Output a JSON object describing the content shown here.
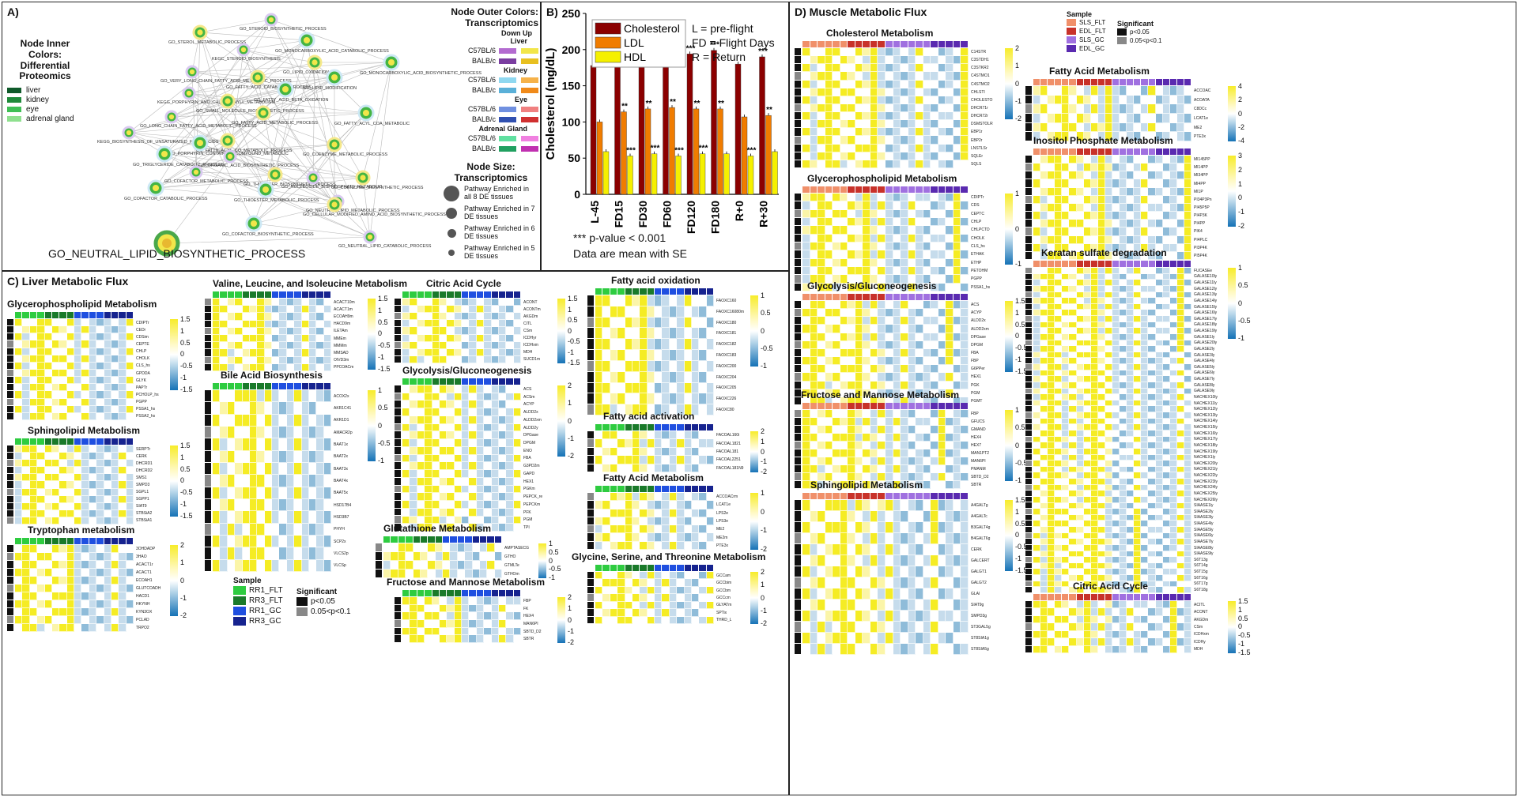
{
  "panelA": {
    "label": "A)",
    "inner_title": "Node Inner Colors: Differential Proteomics",
    "inner_items": [
      {
        "name": "liver",
        "color": "#0f5a2a"
      },
      {
        "name": "kidney",
        "color": "#1f8a3a"
      },
      {
        "name": "eye",
        "color": "#3fbf55"
      },
      {
        "name": "adrenal gland",
        "color": "#8fe08f"
      }
    ],
    "outer_title": "Node Outer Colors: Transcriptomics",
    "down_up": "Down Up",
    "tissues": [
      {
        "name": "Liver",
        "rows": [
          {
            "strain": "C57BL/6",
            "down": "#b36bd0",
            "up": "#f2e64a"
          },
          {
            "strain": "BALB/c",
            "down": "#7a3da0",
            "up": "#e8c020"
          }
        ]
      },
      {
        "name": "Kidney",
        "rows": [
          {
            "strain": "C57BL/6",
            "down": "#8fd8f0",
            "up": "#f6b24a"
          },
          {
            "strain": "BALB/c",
            "down": "#5ab0d8",
            "up": "#f08a1a"
          }
        ]
      },
      {
        "name": "Eye",
        "rows": [
          {
            "strain": "C57BL/6",
            "down": "#7090e0",
            "up": "#f08080"
          },
          {
            "strain": "BALB/c",
            "down": "#3050b0",
            "up": "#d03030"
          }
        ]
      },
      {
        "name": "Adrenal Gland",
        "rows": [
          {
            "strain": "C57BL/6",
            "down": "#60e0a0",
            "up": "#f080e0"
          },
          {
            "strain": "BALB/c",
            "down": "#20a060",
            "up": "#c030b0"
          }
        ]
      }
    ],
    "size_title": "Node Size: Transcriptomics",
    "sizes": [
      "Pathway Enriched in all 8 DE tissues",
      "Pathway Enriched in 7 DE tissues",
      "Pathway Enriched in 6 DE tissues",
      "Pathway Enriched in 5 DE tissues"
    ],
    "highlight": "GO_NEUTRAL_LIPID_BIOSYNTHETIC_PROCESS",
    "nodes": [
      "GO_STEROID_BIOSYNTHETIC_PROCESS",
      "GO_STEROL_METABOLIC_PROCESS",
      "GO_MONOCARBOXYLIC_ACID_CATABOLIC_PROCESS",
      "KEGC_STEROID_BIOSYNTHESIS",
      "GO_LIPID_OXIDATION",
      "GO_MONOCARBOXYLIC_ACID_BIOSYNTHETIC_PROCESS",
      "GO_VERY_LONG_CHAIN_FATTY_ACID_METABOLIC_PROCESS",
      "GO_FATTY_ACID_CATABOLIC_PROCESS",
      "GO_LIPID_MODIFICATION",
      "KEGG_PORPHYRIN_AND_CHLOROPHYLL_METABOLISM",
      "GO_SMALL_MOLECULE_BIOSYNTHETIC_PROCESS",
      "GO_FATTY_ACID_BETA_OXIDATION",
      "GO_LONG_CHAIN_FATTY_ACID_METABOLIC_PROCESS",
      "GO_FATTY_ACID_METABOLIC_PROCESS",
      "GO_FATTY_ACYL_COA_METABOLIC",
      "KEGG_BIOSYNTHESIS_OF_UNSATURATED_FATTY_ACIDS",
      "GO_FATTY_ACYL_CO_METABOLIC_PROCESS",
      "GO_PORPHYRIN_CONTAINING_COMPOUND_METABOLIC",
      "GO_ORGANIC_ACID_BIOSYNTHETIC_PROCESS",
      "GO_COENZYME_METABOLIC_PROCESS",
      "GO_TRIGLYCERIDE_CATABOLIC_PROCESS",
      "GO_COFACTOR_METABOLIC_PROCESS",
      "GO_THIOESTER_BIOSYNTHETIC_PROCESS",
      "GO_COFACTOR_CATABOLIC_PROCESS",
      "GO_NUCLEOSIDE_BISPHOSPHATE_METABOLIC",
      "GO_COENZYME_BIOSYNTHETIC_PROCESS",
      "GO_THIOESTER_METABOLIC_PROCESS",
      "GO_NEUTRAL_LIPID_METABOLIC_PROCESS",
      "GO_CELLULAR_MODIFIED_AMINO_ACID_BIOSYNTHETIC_PROCESS",
      "GO_COFACTOR_BIOSYNTHETIC_PROCESS",
      "GO_NEUTRAL_LIPID_CATABOLIC_PROCESS"
    ]
  },
  "panelB": {
    "label": "B)",
    "annot_lines": [
      "L = pre-flight",
      "FD = Flight Days",
      "R = Return"
    ],
    "footnote1": "*** p-value < 0.001",
    "footnote2": "Data are mean with SE",
    "stars3": "***",
    "stars2": "**"
  },
  "chart_data": {
    "type": "bar",
    "title": "",
    "xlabel": "",
    "ylabel": "Cholesterol (mg/dL)",
    "ylim": [
      0,
      250
    ],
    "yticks": [
      0,
      50,
      100,
      150,
      200,
      250
    ],
    "categories": [
      "L-45",
      "FD15",
      "FD30",
      "FD60",
      "FD120",
      "FD180",
      "R+0",
      "R+30"
    ],
    "series": [
      {
        "name": "Cholesterol",
        "color": "#8b0000",
        "values": [
          178,
          187,
          192,
          197,
          194,
          199,
          180,
          190
        ]
      },
      {
        "name": "LDL",
        "color": "#f07c00",
        "values": [
          100,
          114,
          118,
          120,
          118,
          118,
          107,
          109
        ]
      },
      {
        "name": "HDL",
        "color": "#f5f000",
        "values": [
          59,
          53,
          56,
          53,
          56,
          56,
          53,
          59
        ]
      }
    ],
    "significance": {
      "Cholesterol": [
        "",
        "***",
        "***",
        "***",
        "***",
        "***",
        "",
        "***"
      ],
      "LDL": [
        "",
        "**",
        "**",
        "**",
        "**",
        "**",
        "",
        "**"
      ],
      "HDL": [
        "",
        "***",
        "***",
        "***",
        "***",
        "",
        "***",
        ""
      ]
    }
  },
  "panelC": {
    "label": "C) Liver Metabolic Flux",
    "legend_sample_title": "Sample",
    "legend_samples": [
      {
        "name": "RR1_FLT",
        "color": "#2ecc40"
      },
      {
        "name": "RR3_FLT",
        "color": "#1a7a2a"
      },
      {
        "name": "RR1_GC",
        "color": "#1f4fe0"
      },
      {
        "name": "RR3_GC",
        "color": "#16238f"
      }
    ],
    "legend_sig_title": "Significant",
    "legend_sig": [
      {
        "name": "p<0.05",
        "color": "#111111"
      },
      {
        "name": "0.05<p<0.1",
        "color": "#888888"
      }
    ],
    "heatmaps": [
      {
        "title": "Glycerophospholipid Metabolism",
        "rows": [
          "CDIPTr",
          "CEDr",
          "CDSim",
          "CEPTE",
          "CHLP",
          "CHOLK",
          "CLS_hs",
          "GPDDA",
          "GLYK",
          "PAPTr",
          "PCHOLP_hs",
          "PGPP",
          "PSSA1_hs",
          "PSSA2_hs"
        ],
        "cbar": [
          "1.5",
          "1",
          "0.5",
          "0",
          "-0.5",
          "-1",
          "-1.5"
        ]
      },
      {
        "title": "Sphingolipid Metabolism",
        "rows": [
          "SERPTr",
          "CERK",
          "DHCRD1",
          "DHCRD2",
          "SMS1",
          "SMPD3",
          "SGPL1",
          "SGPP1",
          "SIAT9",
          "STBSiA2",
          "STBSiA1"
        ],
        "cbar": [
          "1.5",
          "1",
          "0.5",
          "0",
          "-0.5",
          "-1",
          "-1.5"
        ]
      },
      {
        "title": "Tryptophan metabolism",
        "rows": [
          "3OHDADP",
          "3HAO",
          "ACACT1r",
          "ACACT1",
          "ECOAH1",
          "GLUTCOADH",
          "HACD1",
          "HKYNH",
          "KYN3OX",
          "PCLAD",
          "TRPO2"
        ],
        "cbar": [
          "2",
          "1",
          "0",
          "-1",
          "-2"
        ]
      },
      {
        "title": "Valine, Leucine, and Isoleucine Metabolism",
        "rows": [
          "ACACT10m",
          "ACACT1m",
          "ECOAH9m",
          "HACD9m",
          "ILETAm",
          "MMEm",
          "MMMm",
          "MMSAD",
          "OIVD3m",
          "PPCOACm"
        ],
        "cbar": [
          "1.5",
          "1",
          "0.5",
          "0",
          "-0.5",
          "-1",
          "-1.5"
        ]
      },
      {
        "title": "Bile Acid Biosynthesis",
        "rows": [
          "ACOX2x",
          "AKR1C41",
          "AKR1D1",
          "AMACR2p",
          "BAAT1x",
          "BAAT2x",
          "BAAT3x",
          "BAAT4x",
          "BAAT5x",
          "HSD17B4",
          "HSD3B7",
          "PHYH",
          "SCP2x",
          "VLCS2p",
          "VLCSp"
        ],
        "cbar": [
          "1",
          "0.5",
          "0",
          "-0.5",
          "-1"
        ]
      },
      {
        "title": "Citric Acid Cycle",
        "rows": [
          "ACONT",
          "ACONTm",
          "AKGDm",
          "CITL",
          "CSm",
          "ICDHyr",
          "ICDHxm",
          "MDH",
          "SUCD1m"
        ],
        "cbar": [
          "1.5",
          "1",
          "0.5",
          "0",
          "-0.5",
          "-1",
          "-1.5"
        ]
      },
      {
        "title": "Glycolysis/Gluconeogenesis",
        "rows": [
          "ACS",
          "ACSm",
          "ACYP",
          "ALDD2x",
          "ALDD2xm",
          "ALDD2y",
          "DPGase",
          "DPGM",
          "ENO",
          "FBA",
          "G3PD2m",
          "GAPD",
          "HEX1",
          "PGKm",
          "PEPCK_re",
          "PEPCKm",
          "PFK",
          "PGM",
          "TPI"
        ],
        "cbar": [
          "2",
          "1",
          "0",
          "-1",
          "-2"
        ]
      },
      {
        "title": "Glutathione Metabolism",
        "rows": [
          "AMPTASECG",
          "GTHO",
          "GTMLTe",
          "GTHOm"
        ],
        "cbar": [
          "1",
          "0.5",
          "0",
          "-0.5",
          "-1"
        ]
      },
      {
        "title": "Fructose and Mannose Metabolism",
        "rows": [
          "FBP",
          "FK",
          "HEX4",
          "MAN6PI",
          "SBTD_D2",
          "SBTR"
        ],
        "cbar": [
          "2",
          "1",
          "0",
          "-1",
          "-2"
        ]
      },
      {
        "title": "Fatty acid oxidation",
        "rows": [
          "FAOXC160",
          "FAOXC16080m",
          "FAOXC180",
          "FAOXC181",
          "FAOXC182",
          "FAOXC183",
          "FAOXC200",
          "FAOXC204",
          "FAOXC205",
          "FAOXC226",
          "FAOXC80"
        ],
        "cbar": [
          "1",
          "0.5",
          "0",
          "-0.5",
          "-1"
        ]
      },
      {
        "title": "Fatty acid activation",
        "rows": [
          "FACOAL160i",
          "FACOAL1821",
          "FACOAL181",
          "FACOAL2251",
          "FACOAL181N9"
        ],
        "cbar": [
          "2",
          "1",
          "0",
          "-1",
          "-2"
        ]
      },
      {
        "title": "Fatty Acid Metabolism",
        "rows": [
          "ACCOACrm",
          "LCAT1e",
          "LPS2e",
          "LPS3e",
          "ME2",
          "ME2m",
          "PTE3x"
        ],
        "cbar": [
          "1",
          "0",
          "-1",
          "-2"
        ]
      },
      {
        "title": "Glycine, Serine, and Threonine Metabolism",
        "rows": [
          "GCCam",
          "GCCbim",
          "GCCbm",
          "GCCcm",
          "GLYATm",
          "SPTix",
          "THRD_L"
        ],
        "cbar": [
          "2",
          "1",
          "0",
          "-1",
          "-2"
        ]
      }
    ]
  },
  "panelD": {
    "label": "D) Muscle Metabolic Flux",
    "legend_sample_title": "Sample",
    "legend_samples": [
      {
        "name": "SLS_FLT",
        "color": "#f0906a"
      },
      {
        "name": "EDL_FLT",
        "color": "#c8322a"
      },
      {
        "name": "SLS_GC",
        "color": "#a070e0"
      },
      {
        "name": "EDL_GC",
        "color": "#5a2ab0"
      }
    ],
    "legend_sig_title": "Significant",
    "legend_sig": [
      {
        "name": "p<0.05",
        "color": "#111111"
      },
      {
        "name": "0.05<p<0.1",
        "color": "#888888"
      }
    ],
    "heatmaps": [
      {
        "title": "Cholesterol Metabolism",
        "rows": [
          "C14STR",
          "C3STDH1",
          "C3STKR2",
          "C4STMO1",
          "C4STMO2",
          "CHLSTI",
          "CHOLESTO",
          "DHCR71r",
          "DHCR72r",
          "DSMSTOLR",
          "EBP1r",
          "EBP2r",
          "LNSTLSr",
          "SQLEr",
          "SQLS"
        ],
        "cbar": [
          "2",
          "1",
          "0",
          "-1",
          "-2"
        ]
      },
      {
        "title": "Glycerophospholipid Metabolism",
        "rows": [
          "CDIPTr",
          "CDS",
          "CEPTC",
          "CHLP",
          "CHLPCTD",
          "CHOLK",
          "CLS_hs",
          "ETHAK",
          "ETHP",
          "PETOHM",
          "PGPP",
          "PSSA1_hs"
        ],
        "cbar": [
          "1",
          "0",
          "-1"
        ]
      },
      {
        "title": "Glycolysis/Gluconeogenesis",
        "rows": [
          "ACS",
          "ACYP",
          "ALDD2x",
          "ALDD2xm",
          "DPGase",
          "DPGM",
          "FBA",
          "FBP",
          "G6PPer",
          "HEX1",
          "PGK",
          "PGM",
          "PGMT"
        ],
        "cbar": [
          "1.5",
          "1",
          "0.5",
          "0",
          "-0.5",
          "-1",
          "-1.5"
        ]
      },
      {
        "title": "Fructose and Mannose Metabolism",
        "rows": [
          "FBP",
          "GFUCS",
          "GMAND",
          "HEX4",
          "HEX7",
          "MAN1PT2",
          "MAN6PI",
          "PMANM",
          "SBTD_D2",
          "SBTR"
        ],
        "cbar": [
          "1",
          "0.5",
          "0",
          "-0.5",
          "-1"
        ]
      },
      {
        "title": "Sphingolipid Metabolism",
        "rows": [
          "A4GALTg",
          "A4GALTc",
          "B3GALT4g",
          "B4GALT6g",
          "CERK",
          "GALCERT",
          "GALGT1",
          "GALGT2",
          "GLAl",
          "SIAT9g",
          "SMPD3g",
          "ST3GAL5g",
          "ST8SIA1g",
          "ST8SIA5g"
        ],
        "cbar": [
          "1.5",
          "1",
          "0.5",
          "0",
          "-0.5",
          "-1",
          "-1.5"
        ]
      },
      {
        "title": "Fatty Acid Metabolism",
        "rows": [
          "ACCOAC",
          "ACOATA",
          "C8DCc",
          "LCAT1e",
          "ME2",
          "PTE3x"
        ],
        "cbar": [
          "4",
          "2",
          "0",
          "-2",
          "-4"
        ]
      },
      {
        "title": "Inositol Phosphate Metabolism",
        "rows": [
          "MI145PP",
          "MI14PP",
          "MI34PP",
          "MI4PP",
          "MI1P",
          "PI34P3Pn",
          "PI45P5P",
          "PI4P3K",
          "PI4PP",
          "PIK4",
          "PI4PLC",
          "PI3P4K",
          "PI5P4K"
        ],
        "cbar": [
          "3",
          "2",
          "1",
          "0",
          "-1",
          "-2"
        ]
      },
      {
        "title": "Keratan sulfate degradation",
        "rows": [
          "FUCASEe",
          "GALASE10ly",
          "GALASE11ly",
          "GALASE12ly",
          "GALASE13ly",
          "GALASE14ly",
          "GALASE15ly",
          "GALASE16ly",
          "GALASE17ly",
          "GALASE18ly",
          "GALASE19ly",
          "GALASE1ly",
          "GALASE20ly",
          "GALASE2ly",
          "GALASE3ly",
          "GALASE4ly",
          "GALASE5ly",
          "GALASE6ly",
          "GALASE7ly",
          "GALASE8ly",
          "GALASE9ly",
          "NACHEX10ly",
          "NACHEX11ly",
          "NACHEX12ly",
          "NACHEX13ly",
          "NACHEX14ly",
          "NACHEX15ly",
          "NACHEX16ly",
          "NACHEX17ly",
          "NACHEX18ly",
          "NACHEX19ly",
          "NACHEX1ly",
          "NACHEX20ly",
          "NACHEX21ly",
          "NACHEX22ly",
          "NACHEX23ly",
          "NACHEX24ly",
          "NACHEX25ly",
          "NACHEX26ly",
          "SIAASE1ly",
          "SIAASE2ly",
          "SIAASE3ly",
          "SIAASE4ly",
          "SIAASE5ly",
          "SIAASE6ly",
          "SIAASE7ly",
          "SIAASE8ly",
          "SIAASE9ly",
          "S6T13g",
          "S6T14g",
          "S6T15g",
          "S6T16g",
          "S6T17g",
          "S6T18g"
        ],
        "cbar": [
          "1",
          "0.5",
          "0",
          "-0.5",
          "-1"
        ]
      },
      {
        "title": "Citric Acid Cycle",
        "rows": [
          "ACITL",
          "ACONT",
          "AKGDm",
          "CSm",
          "ICDHxm",
          "ICDHy",
          "MDH"
        ],
        "cbar": [
          "1.5",
          "1",
          "0.5",
          "0",
          "-0.5",
          "-1",
          "-1.5"
        ]
      }
    ]
  }
}
